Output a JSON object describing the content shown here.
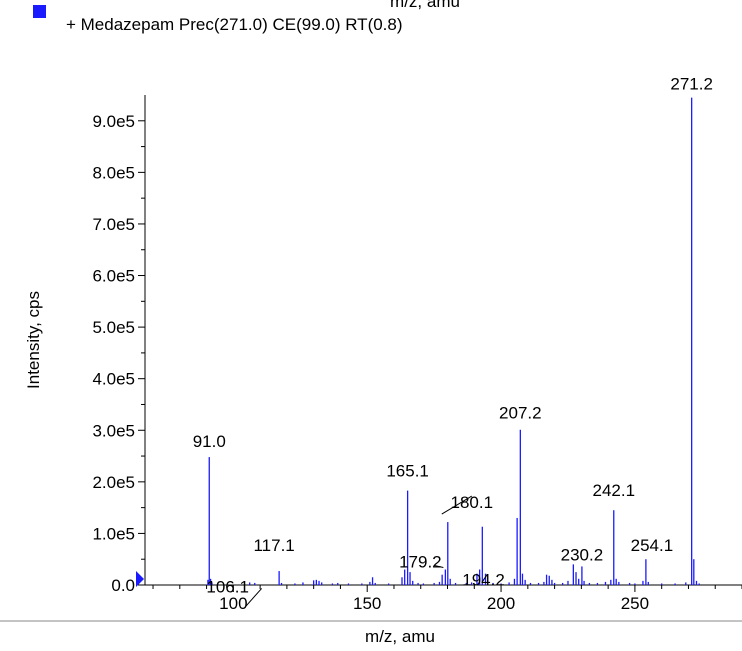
{
  "top_clipped_label": "m/z, amu",
  "legend": {
    "marker_color": "#1a1aff",
    "text": "+ Medazepam Prec(271.0) CE(99.0) RT(0.8)"
  },
  "colors": {
    "spectrum": "#1a1aff",
    "axis": "#000000",
    "annotation_leader": "#000000"
  },
  "chart_data": {
    "type": "bar",
    "title": "+ Medazepam Prec(271.0) CE(99.0) RT(0.8)",
    "xlabel": "m/z, amu",
    "ylabel": "Intensity, cps",
    "xlim": [
      67,
      290
    ],
    "ylim": [
      0,
      950000
    ],
    "x_ticks": [
      100,
      150,
      200,
      250
    ],
    "y_ticks": [
      0,
      100000,
      200000,
      300000,
      400000,
      500000,
      600000,
      700000,
      800000,
      900000
    ],
    "y_tick_labels": [
      "0.0",
      "1.0e5",
      "2.0e5",
      "3.0e5",
      "4.0e5",
      "5.0e5",
      "6.0e5",
      "7.0e5",
      "8.0e5",
      "9.0e5"
    ],
    "grid": false,
    "legend_position": "top-left",
    "peaks": [
      {
        "x": 90.5,
        "y": 10000
      },
      {
        "x": 91.0,
        "y": 248000
      },
      {
        "x": 91.5,
        "y": 12000
      },
      {
        "x": 92.0,
        "y": 5000
      },
      {
        "x": 106.1,
        "y": 5000
      },
      {
        "x": 108.0,
        "y": 4000
      },
      {
        "x": 117.1,
        "y": 27000
      },
      {
        "x": 118.0,
        "y": 4000
      },
      {
        "x": 123.0,
        "y": 3000
      },
      {
        "x": 126.0,
        "y": 5000
      },
      {
        "x": 130.0,
        "y": 9000
      },
      {
        "x": 131.0,
        "y": 10000
      },
      {
        "x": 132.0,
        "y": 8000
      },
      {
        "x": 133.0,
        "y": 5000
      },
      {
        "x": 137.0,
        "y": 3000
      },
      {
        "x": 139.0,
        "y": 4000
      },
      {
        "x": 143.0,
        "y": 3000
      },
      {
        "x": 148.0,
        "y": 3000
      },
      {
        "x": 151.0,
        "y": 6000
      },
      {
        "x": 152.0,
        "y": 15000
      },
      {
        "x": 153.0,
        "y": 4000
      },
      {
        "x": 158.0,
        "y": 3000
      },
      {
        "x": 163.0,
        "y": 15000
      },
      {
        "x": 164.0,
        "y": 30000
      },
      {
        "x": 165.1,
        "y": 183000
      },
      {
        "x": 166.0,
        "y": 25000
      },
      {
        "x": 167.0,
        "y": 8000
      },
      {
        "x": 169.0,
        "y": 4000
      },
      {
        "x": 171.0,
        "y": 3000
      },
      {
        "x": 175.0,
        "y": 4000
      },
      {
        "x": 177.0,
        "y": 6000
      },
      {
        "x": 178.0,
        "y": 20000
      },
      {
        "x": 179.2,
        "y": 30000
      },
      {
        "x": 180.1,
        "y": 122000
      },
      {
        "x": 181.0,
        "y": 12000
      },
      {
        "x": 183.0,
        "y": 4000
      },
      {
        "x": 187.0,
        "y": 4000
      },
      {
        "x": 189.0,
        "y": 5000
      },
      {
        "x": 191.0,
        "y": 22000
      },
      {
        "x": 192.0,
        "y": 30000
      },
      {
        "x": 193.0,
        "y": 113000
      },
      {
        "x": 194.2,
        "y": 22000
      },
      {
        "x": 195.0,
        "y": 8000
      },
      {
        "x": 197.0,
        "y": 4000
      },
      {
        "x": 200.0,
        "y": 3000
      },
      {
        "x": 203.0,
        "y": 5000
      },
      {
        "x": 205.0,
        "y": 12000
      },
      {
        "x": 206.0,
        "y": 130000
      },
      {
        "x": 207.2,
        "y": 301000
      },
      {
        "x": 208.0,
        "y": 22000
      },
      {
        "x": 209.0,
        "y": 10000
      },
      {
        "x": 211.0,
        "y": 4000
      },
      {
        "x": 214.0,
        "y": 4000
      },
      {
        "x": 216.0,
        "y": 6000
      },
      {
        "x": 217.0,
        "y": 20000
      },
      {
        "x": 218.0,
        "y": 18000
      },
      {
        "x": 219.0,
        "y": 10000
      },
      {
        "x": 220.0,
        "y": 4000
      },
      {
        "x": 223.0,
        "y": 4000
      },
      {
        "x": 225.0,
        "y": 8000
      },
      {
        "x": 227.0,
        "y": 40000
      },
      {
        "x": 228.0,
        "y": 25000
      },
      {
        "x": 229.0,
        "y": 12000
      },
      {
        "x": 230.2,
        "y": 36000
      },
      {
        "x": 231.0,
        "y": 8000
      },
      {
        "x": 233.0,
        "y": 4000
      },
      {
        "x": 236.0,
        "y": 4000
      },
      {
        "x": 239.0,
        "y": 6000
      },
      {
        "x": 241.0,
        "y": 10000
      },
      {
        "x": 242.1,
        "y": 145000
      },
      {
        "x": 243.0,
        "y": 12000
      },
      {
        "x": 244.0,
        "y": 6000
      },
      {
        "x": 248.0,
        "y": 4000
      },
      {
        "x": 250.0,
        "y": 3000
      },
      {
        "x": 253.0,
        "y": 8000
      },
      {
        "x": 254.1,
        "y": 50000
      },
      {
        "x": 255.0,
        "y": 6000
      },
      {
        "x": 260.0,
        "y": 3000
      },
      {
        "x": 265.0,
        "y": 3000
      },
      {
        "x": 269.0,
        "y": 5000
      },
      {
        "x": 271.2,
        "y": 945000
      },
      {
        "x": 272.0,
        "y": 50000
      },
      {
        "x": 273.0,
        "y": 8000
      },
      {
        "x": 274.0,
        "y": 3000
      }
    ],
    "peak_labels": [
      {
        "text": "91.0",
        "x": 91.0,
        "y": 248000
      },
      {
        "text": "106.1",
        "x": 106.1,
        "y": 5000
      },
      {
        "text": "117.1",
        "x": 117.1,
        "y": 27000
      },
      {
        "text": "165.1",
        "x": 165.1,
        "y": 183000
      },
      {
        "text": "179.2",
        "x": 179.2,
        "y": 30000
      },
      {
        "text": "180.1",
        "x": 180.1,
        "y": 122000
      },
      {
        "text": "194.2",
        "x": 194.2,
        "y": 22000
      },
      {
        "text": "207.2",
        "x": 207.2,
        "y": 301000
      },
      {
        "text": "230.2",
        "x": 230.2,
        "y": 36000
      },
      {
        "text": "242.1",
        "x": 242.1,
        "y": 145000
      },
      {
        "text": "254.1",
        "x": 254.1,
        "y": 50000
      },
      {
        "text": "271.2",
        "x": 271.2,
        "y": 945000
      }
    ]
  }
}
